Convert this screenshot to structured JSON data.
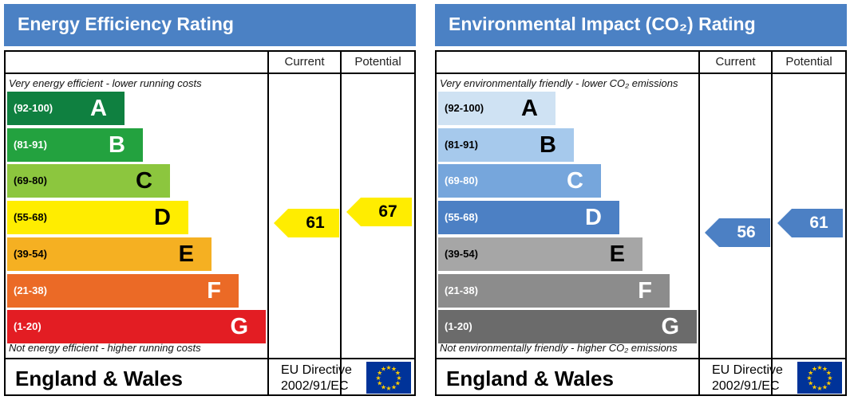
{
  "colors": {
    "title_bar": "#4b81c4",
    "eu_flag": "#003399",
    "eu_stars": "#ffcc00"
  },
  "chart_data": [
    {
      "type": "bar",
      "title": "Energy Efficiency Rating",
      "columns": [
        "Current",
        "Potential"
      ],
      "top_note": "Very energy efficient - lower running costs",
      "bottom_note": "Not energy efficient - higher running costs",
      "bands": [
        {
          "range": "(92-100)",
          "letter": "A",
          "color": "#0f8040",
          "text_color": "#ffffff"
        },
        {
          "range": "(81-91)",
          "letter": "B",
          "color": "#23a23f",
          "text_color": "#ffffff"
        },
        {
          "range": "(69-80)",
          "letter": "C",
          "color": "#8cc63e",
          "text_color": "#000000"
        },
        {
          "range": "(55-68)",
          "letter": "D",
          "color": "#ffed00",
          "text_color": "#000000"
        },
        {
          "range": "(39-54)",
          "letter": "E",
          "color": "#f5b022",
          "text_color": "#000000"
        },
        {
          "range": "(21-38)",
          "letter": "F",
          "color": "#eb6a26",
          "text_color": "#ffffff"
        },
        {
          "range": "(1-20)",
          "letter": "G",
          "color": "#e31d23",
          "text_color": "#ffffff"
        }
      ],
      "current": {
        "value": "61",
        "band": "D",
        "color": "#ffed00",
        "text_color": "#000000"
      },
      "potential": {
        "value": "67",
        "band": "D",
        "color": "#ffed00",
        "text_color": "#000000"
      },
      "footer": {
        "region": "England & Wales",
        "directive_line1": "EU Directive",
        "directive_line2": "2002/91/EC"
      }
    },
    {
      "type": "bar",
      "title": "Environmental Impact (CO₂) Rating",
      "columns": [
        "Current",
        "Potential"
      ],
      "top_note": "Very environmentally friendly - lower CO₂ emissions",
      "bottom_note": "Not environmentally friendly - higher CO₂ emissions",
      "bands": [
        {
          "range": "(92-100)",
          "letter": "A",
          "color": "#cfe2f3",
          "text_color": "#000000"
        },
        {
          "range": "(81-91)",
          "letter": "B",
          "color": "#a6c9ec",
          "text_color": "#000000"
        },
        {
          "range": "(69-80)",
          "letter": "C",
          "color": "#76a6dc",
          "text_color": "#ffffff"
        },
        {
          "range": "(55-68)",
          "letter": "D",
          "color": "#4c80c4",
          "text_color": "#ffffff"
        },
        {
          "range": "(39-54)",
          "letter": "E",
          "color": "#a6a6a6",
          "text_color": "#000000"
        },
        {
          "range": "(21-38)",
          "letter": "F",
          "color": "#8c8c8c",
          "text_color": "#ffffff"
        },
        {
          "range": "(1-20)",
          "letter": "G",
          "color": "#6b6b6b",
          "text_color": "#ffffff"
        }
      ],
      "current": {
        "value": "56",
        "band": "D",
        "color": "#4c80c4",
        "text_color": "#ffffff"
      },
      "potential": {
        "value": "61",
        "band": "D",
        "color": "#4c80c4",
        "text_color": "#ffffff"
      },
      "footer": {
        "region": "England & Wales",
        "directive_line1": "EU Directive",
        "directive_line2": "2002/91/EC"
      }
    }
  ]
}
